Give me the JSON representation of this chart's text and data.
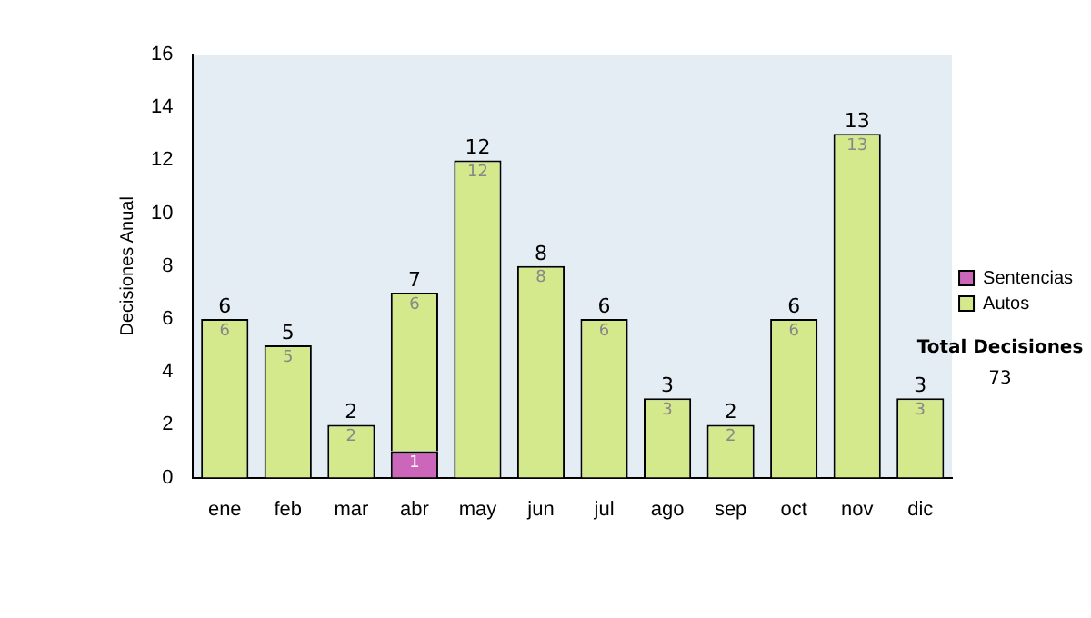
{
  "chart_data": {
    "type": "bar",
    "stacked": true,
    "ylabel": "Decisiones Anual",
    "categories": [
      "ene",
      "feb",
      "mar",
      "abr",
      "may",
      "jun",
      "jul",
      "ago",
      "sep",
      "oct",
      "nov",
      "dic"
    ],
    "series": [
      {
        "name": "Sentencias",
        "color": "#cc66bb",
        "values": [
          0,
          0,
          0,
          1,
          0,
          0,
          0,
          0,
          0,
          0,
          0,
          0
        ],
        "value_labels": [
          null,
          null,
          null,
          "1",
          null,
          null,
          null,
          null,
          null,
          null,
          null,
          null
        ]
      },
      {
        "name": "Autos",
        "color": "#d4e88c",
        "values": [
          6,
          5,
          2,
          6,
          12,
          8,
          6,
          3,
          2,
          6,
          13,
          3
        ],
        "value_labels": [
          "6",
          "5",
          "2",
          "6",
          "12",
          "8",
          "6",
          "3",
          "2",
          "6",
          "13",
          "3"
        ]
      }
    ],
    "totals": [
      "6",
      "5",
      "2",
      "7",
      "12",
      "8",
      "6",
      "3",
      "2",
      "6",
      "13",
      "3"
    ],
    "ylim": [
      0,
      16
    ],
    "yticks": [
      0,
      2,
      4,
      6,
      8,
      10,
      12,
      14,
      16
    ],
    "grid": false,
    "legend": "right",
    "annotations": [
      "Total Decisiones",
      "73"
    ]
  }
}
